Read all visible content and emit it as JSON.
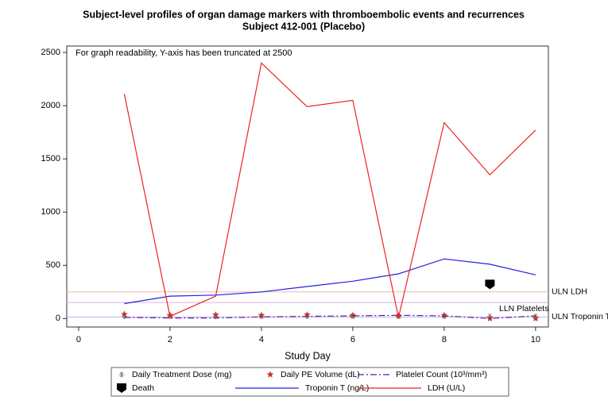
{
  "chart_data": {
    "type": "line",
    "title": "Subject-level profiles of organ damage markers with thromboembolic events and recurrences",
    "subtitle": "Subject 412-001  (Placebo)",
    "annotation": "For graph readability, Y-axis has been truncated at 2500",
    "x_label": "Study Day",
    "x": [
      1,
      2,
      3,
      4,
      5,
      6,
      7,
      8,
      9,
      10
    ],
    "xlim": [
      -0.26,
      10.28
    ],
    "xticks": [
      0,
      2,
      4,
      6,
      8,
      10
    ],
    "ylim": [
      -80,
      2560
    ],
    "yticks": [
      0,
      500,
      1000,
      1500,
      2000,
      2500
    ],
    "series": [
      {
        "name": "Daily Treatment Dose (mg)",
        "style": "asterisk",
        "color": "#8c8c8c",
        "values": [
          20,
          20,
          20,
          20,
          20,
          20,
          20,
          20,
          20,
          20
        ]
      },
      {
        "name": "Daily PE Volume (dL)",
        "style": "star",
        "color": "#c0392b",
        "values": [
          40,
          30,
          35,
          30,
          35,
          30,
          25,
          30,
          0,
          0
        ]
      },
      {
        "name": "Platelet Count (10³/mm³)",
        "style": "dashdot",
        "color": "#6a1b9a",
        "values": [
          10,
          5,
          5,
          15,
          20,
          25,
          30,
          25,
          0,
          25
        ]
      },
      {
        "name": "Death",
        "style": "death",
        "color": "#000000",
        "values": [
          null,
          null,
          null,
          null,
          null,
          null,
          null,
          null,
          320,
          null
        ]
      },
      {
        "name": "Troponin T (ng/L)",
        "style": "line",
        "color": "#2020e0",
        "values": [
          140,
          210,
          220,
          250,
          300,
          350,
          420,
          560,
          510,
          410
        ]
      },
      {
        "name": "LDH (U/L)",
        "style": "line",
        "color": "#ee2222",
        "values": [
          2110,
          20,
          210,
          2400,
          1990,
          2050,
          10,
          1840,
          1350,
          1770
        ]
      }
    ],
    "reference_lines": [
      {
        "label": "ULN  LDH",
        "value": 250,
        "color": "#f4b6b6"
      },
      {
        "label": "LLN Platelets",
        "value": 150,
        "color": "#d8b4e2"
      },
      {
        "label": "ULN Troponin T",
        "value": 14,
        "color": "#b4b4f0"
      }
    ]
  }
}
